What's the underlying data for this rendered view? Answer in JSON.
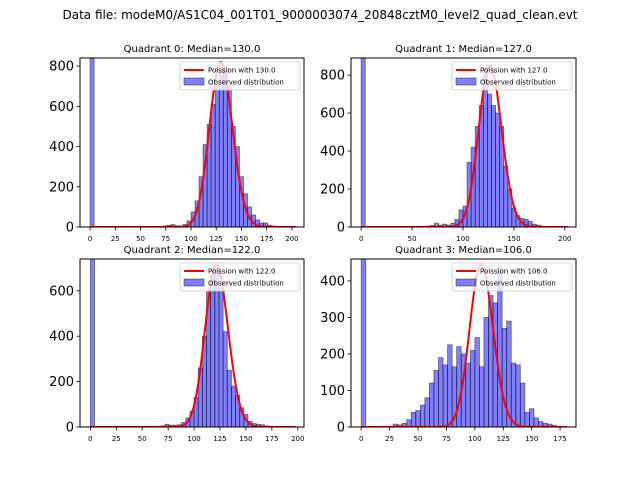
{
  "suptitle": "Data file: modeM0/AS1C04_001T01_9000003074_20848cztM0_level2_quad_clean.evt",
  "colors": {
    "bar_fill": "#0000ff",
    "bar_alpha": 0.5,
    "bar_edge": "#000000",
    "poisson_line": "#ff0000"
  },
  "chart_data": [
    {
      "type": "bar",
      "title": "Quadrant 0: Median=130.0",
      "xlim": [
        -10,
        212
      ],
      "ylim": [
        0,
        840
      ],
      "xticks": [
        0,
        25,
        50,
        75,
        100,
        125,
        150,
        175,
        200
      ],
      "yticks": [
        0,
        200,
        400,
        600,
        800
      ],
      "legend": {
        "placement": "top-right",
        "entries": [
          "Poission with 130.0",
          "Observed distribution"
        ]
      },
      "bin_width": 4,
      "bins_start": [
        0,
        64,
        68,
        72,
        76,
        80,
        84,
        88,
        92,
        96,
        100,
        104,
        108,
        112,
        116,
        120,
        124,
        128,
        132,
        136,
        140,
        144,
        148,
        152,
        156,
        160,
        164,
        168,
        172,
        176,
        180,
        184
      ],
      "counts": [
        1200,
        3,
        3,
        5,
        8,
        12,
        6,
        5,
        12,
        30,
        75,
        130,
        250,
        410,
        510,
        610,
        700,
        790,
        800,
        700,
        500,
        400,
        250,
        165,
        100,
        60,
        35,
        20,
        20,
        8,
        5,
        3
      ],
      "poisson_mean": 130.0,
      "poisson_peak": 820
    },
    {
      "type": "bar",
      "title": "Quadrant 1: Median=127.0",
      "xlim": [
        -10,
        211
      ],
      "ylim": [
        0,
        890
      ],
      "xticks": [
        0,
        50,
        100,
        150,
        200
      ],
      "yticks": [
        0,
        200,
        400,
        600,
        800
      ],
      "legend": {
        "placement": "top-right",
        "entries": [
          "Poission with 127.0",
          "Observed distribution"
        ]
      },
      "bin_width": 4,
      "bins_start": [
        0,
        56,
        60,
        64,
        68,
        72,
        76,
        80,
        84,
        88,
        92,
        96,
        100,
        104,
        108,
        112,
        116,
        120,
        124,
        128,
        132,
        136,
        140,
        144,
        148,
        152,
        156,
        160,
        164,
        168,
        172,
        176,
        180,
        184
      ],
      "counts": [
        1200,
        3,
        3,
        5,
        8,
        20,
        10,
        15,
        10,
        20,
        40,
        90,
        110,
        340,
        420,
        530,
        640,
        840,
        700,
        640,
        600,
        530,
        320,
        200,
        100,
        60,
        45,
        40,
        30,
        15,
        10,
        5,
        3,
        2
      ],
      "poisson_mean": 127.0,
      "poisson_peak": 850
    },
    {
      "type": "bar",
      "title": "Quadrant 2: Median=122.0",
      "xlim": [
        -10,
        206
      ],
      "ylim": [
        0,
        740
      ],
      "xticks": [
        0,
        25,
        50,
        75,
        100,
        125,
        150,
        175,
        200
      ],
      "yticks": [
        0,
        200,
        400,
        600
      ],
      "legend": {
        "placement": "top-right",
        "entries": [
          "Poission with 122.0",
          "Observed distribution"
        ]
      },
      "bin_width": 4,
      "bins_start": [
        0,
        60,
        64,
        68,
        72,
        76,
        80,
        84,
        88,
        92,
        96,
        100,
        104,
        108,
        112,
        116,
        120,
        124,
        128,
        132,
        136,
        140,
        144,
        148,
        152,
        156,
        160,
        164,
        168,
        172,
        176,
        180
      ],
      "counts": [
        1000,
        3,
        3,
        5,
        12,
        8,
        8,
        10,
        20,
        40,
        70,
        130,
        260,
        400,
        595,
        670,
        700,
        610,
        420,
        250,
        180,
        140,
        85,
        55,
        25,
        15,
        12,
        10,
        5,
        3,
        2,
        1
      ],
      "poisson_mean": 122.0,
      "poisson_peak": 715
    },
    {
      "type": "bar",
      "title": "Quadrant 3: Median=106.0",
      "xlim": [
        -9,
        189
      ],
      "ylim": [
        0,
        460
      ],
      "xticks": [
        0,
        25,
        50,
        75,
        100,
        125,
        150,
        175
      ],
      "yticks": [
        0,
        100,
        200,
        300,
        400
      ],
      "legend": {
        "placement": "top-right",
        "entries": [
          "Poission with 106.0",
          "Observed distribution"
        ]
      },
      "bin_width": 4,
      "bins_start": [
        0,
        16,
        20,
        24,
        28,
        32,
        36,
        40,
        44,
        48,
        52,
        56,
        60,
        64,
        68,
        72,
        76,
        80,
        84,
        88,
        92,
        96,
        100,
        104,
        108,
        112,
        116,
        120,
        124,
        128,
        132,
        136,
        140,
        144,
        148,
        152,
        156,
        160,
        164,
        168
      ],
      "counts": [
        800,
        2,
        2,
        2,
        8,
        6,
        10,
        20,
        40,
        45,
        60,
        80,
        120,
        155,
        190,
        170,
        225,
        165,
        220,
        200,
        175,
        210,
        245,
        165,
        300,
        360,
        340,
        440,
        270,
        290,
        175,
        170,
        120,
        40,
        50,
        25,
        15,
        10,
        8,
        4
      ],
      "poisson_mean": 106.0,
      "poisson_peak": 445
    }
  ]
}
